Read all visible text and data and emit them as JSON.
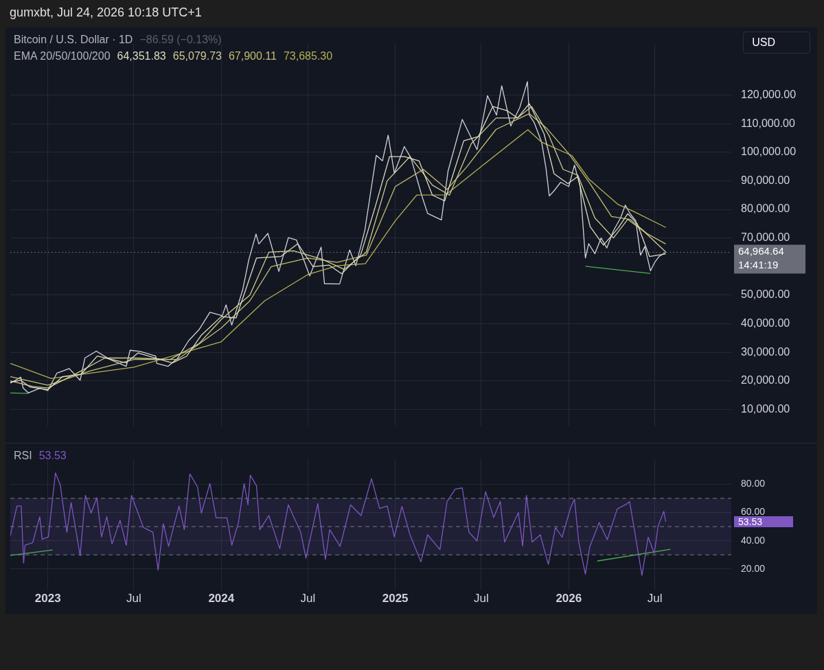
{
  "chart_data": [
    {
      "type": "line",
      "title": "Bitcoin / U.S. Dollar · 1D",
      "subtitle": "−86.59 (−0.13%)",
      "legend_title": "EMA 20/50/100/200",
      "legend": "top left",
      "grid": true,
      "tick_labels": "y",
      "xlim": [
        "2022-10-14",
        "2026-12-09"
      ],
      "xticks": [
        {
          "value": "2023-01-01",
          "label": null
        },
        {
          "value": "2023-07-01",
          "label": null
        },
        {
          "value": "2024-01-01",
          "label": null
        },
        {
          "value": "2024-07-01",
          "label": null
        },
        {
          "value": "2025-01-01",
          "label": null
        },
        {
          "value": "2025-07-01",
          "label": null
        },
        {
          "value": "2026-01-01",
          "label": null
        },
        {
          "value": "2026-07-01",
          "label": null
        }
      ],
      "ylim": [
        4000,
        138000
      ],
      "yticks": [
        {
          "value": 10000,
          "label": "10,000.00"
        },
        {
          "value": 20000,
          "label": "20,000.00"
        },
        {
          "value": 30000,
          "label": "30,000.00"
        },
        {
          "value": 40000,
          "label": "40,000.00"
        },
        {
          "value": 50000,
          "label": "50,000.00"
        },
        {
          "value": 70000,
          "label": "70,000.00"
        },
        {
          "value": 80000,
          "label": "80,000.00"
        },
        {
          "value": 90000,
          "label": "90,000.00"
        },
        {
          "value": 100000,
          "label": "100,000.00"
        },
        {
          "value": 110000,
          "label": "110,000.00"
        },
        {
          "value": 120000,
          "label": "120,000.00"
        }
      ],
      "ref_lines": [
        {
          "axis": "y",
          "value": 64964.64,
          "color": "#6a6d78",
          "line_style": "dotted"
        }
      ],
      "annotations": [
        "gumxbt, Jul 24, 2026 10:18 UTC+1",
        "USD",
        "14:41:19",
        "64,964.64"
      ],
      "series": [
        {
          "color": "#deddc0",
          "x": [
            "2022-10-14",
            "2022-11-05",
            "2022-11-25",
            "2023-01-01",
            "2023-02-01",
            "2023-03-12",
            "2023-04-15",
            "2023-06-15",
            "2023-07-10",
            "2023-08-25",
            "2023-09-20",
            "2023-10-20",
            "2023-11-20",
            "2024-01-01",
            "2024-02-01",
            "2024-03-15",
            "2024-05-05",
            "2024-06-10",
            "2024-07-12",
            "2024-08-15",
            "2024-09-10",
            "2024-10-20",
            "2024-11-20",
            "2024-12-20",
            "2025-01-20",
            "2025-02-20",
            "2025-03-20",
            "2025-04-15",
            "2025-05-25",
            "2025-06-25",
            "2025-07-25",
            "2025-08-25",
            "2025-09-15",
            "2025-10-10",
            "2025-11-10",
            "2025-12-01",
            "2025-12-30",
            "2026-01-20",
            "2026-02-15",
            "2026-03-15",
            "2026-04-15",
            "2026-05-05",
            "2026-05-25",
            "2026-06-20",
            "2026-07-24"
          ],
          "values": [
            19500,
            20200,
            17800,
            16900,
            21500,
            22300,
            28700,
            26300,
            29800,
            27500,
            26300,
            28600,
            36000,
            42500,
            42000,
            63000,
            63500,
            68000,
            60000,
            60500,
            57500,
            64000,
            81000,
            98500,
            98500,
            97000,
            85000,
            83000,
            104000,
            105500,
            116000,
            114500,
            112000,
            117000,
            106500,
            92500,
            89000,
            91500,
            74000,
            67500,
            73500,
            78500,
            75000,
            63500,
            64400
          ],
          "name": "64,351.83"
        },
        {
          "color": "#d0cc92",
          "x": [
            "2022-10-14",
            "2022-12-01",
            "2023-01-01",
            "2023-03-01",
            "2023-05-01",
            "2023-07-01",
            "2023-09-15",
            "2023-11-15",
            "2024-01-01",
            "2024-03-01",
            "2024-04-10",
            "2024-06-01",
            "2024-08-01",
            "2024-09-15",
            "2024-11-01",
            "2024-12-15",
            "2025-02-01",
            "2025-03-20",
            "2025-04-25",
            "2025-06-10",
            "2025-08-01",
            "2025-09-15",
            "2025-10-15",
            "2025-11-20",
            "2025-12-20",
            "2026-01-20",
            "2026-02-25",
            "2026-04-05",
            "2026-05-05",
            "2026-06-10",
            "2026-07-24"
          ],
          "values": [
            20000,
            18000,
            17500,
            22500,
            28000,
            28000,
            27500,
            33000,
            41500,
            50000,
            65000,
            65500,
            62500,
            59000,
            65000,
            90000,
            98500,
            88500,
            85000,
            103000,
            112000,
            112000,
            116000,
            106000,
            94000,
            92000,
            77000,
            70000,
            76500,
            72000,
            65100
          ],
          "name": "65,079.73"
        },
        {
          "color": "#c4bf72",
          "x": [
            "2022-10-14",
            "2023-01-01",
            "2023-04-01",
            "2023-07-01",
            "2023-10-01",
            "2024-01-01",
            "2024-03-01",
            "2024-04-15",
            "2024-07-01",
            "2024-09-01",
            "2024-11-01",
            "2025-01-01",
            "2025-03-01",
            "2025-04-20",
            "2025-06-01",
            "2025-08-01",
            "2025-10-10",
            "2025-11-15",
            "2026-01-01",
            "2026-02-15",
            "2026-04-01",
            "2026-05-10",
            "2026-06-15",
            "2026-07-24"
          ],
          "values": [
            21500,
            18500,
            23500,
            27500,
            27500,
            38500,
            48000,
            60000,
            63000,
            61500,
            64000,
            88000,
            94000,
            87000,
            95000,
            108000,
            113500,
            108500,
            99500,
            89000,
            77500,
            76500,
            71500,
            67900
          ],
          "name": "67,900.11"
        },
        {
          "color": "#b5b052",
          "x": [
            "2022-10-14",
            "2023-01-08",
            "2023-07-01",
            "2024-01-01",
            "2024-04-01",
            "2024-07-01",
            "2024-09-01",
            "2024-10-30",
            "2025-01-01",
            "2025-02-15",
            "2025-04-17",
            "2025-07-01",
            "2025-10-07",
            "2025-11-05",
            "2026-01-08",
            "2026-02-13",
            "2026-04-15",
            "2026-05-17",
            "2026-07-24"
          ],
          "values": [
            26100,
            20800,
            24800,
            33700,
            48000,
            57200,
            60300,
            61000,
            76000,
            85000,
            85100,
            95000,
            107900,
            103500,
            98800,
            90500,
            81700,
            79300,
            73700
          ],
          "name": "73,685.30"
        },
        {
          "color": "#d1d4dc",
          "x": [
            "2022-10-14",
            "2022-11-05",
            "2022-11-10",
            "2022-11-21",
            "2022-12-15",
            "2023-01-01",
            "2023-01-20",
            "2023-02-15",
            "2023-03-10",
            "2023-03-20",
            "2023-04-13",
            "2023-05-10",
            "2023-06-15",
            "2023-06-23",
            "2023-07-14",
            "2023-08-16",
            "2023-08-18",
            "2023-09-11",
            "2023-10-01",
            "2023-10-24",
            "2023-11-15",
            "2023-12-08",
            "2024-01-03",
            "2024-01-11",
            "2024-01-23",
            "2024-02-15",
            "2024-02-28",
            "2024-03-14",
            "2024-03-20",
            "2024-04-08",
            "2024-05-01",
            "2024-05-21",
            "2024-06-07",
            "2024-07-05",
            "2024-07-29",
            "2024-08-05",
            "2024-09-06",
            "2024-09-27",
            "2024-10-10",
            "2024-10-29",
            "2024-11-12",
            "2024-11-22",
            "2024-12-05",
            "2024-12-17",
            "2024-12-30",
            "2025-01-20",
            "2025-02-03",
            "2025-02-26",
            "2025-03-10",
            "2025-04-08",
            "2025-04-22",
            "2025-05-22",
            "2025-06-22",
            "2025-07-14",
            "2025-08-02",
            "2025-08-13",
            "2025-09-01",
            "2025-09-20",
            "2025-10-06",
            "2025-10-10",
            "2025-10-20",
            "2025-11-05",
            "2025-11-14",
            "2025-11-21",
            "2025-12-01",
            "2025-12-15",
            "2026-01-01",
            "2026-01-13",
            "2026-01-25",
            "2026-02-05",
            "2026-02-12",
            "2026-02-25",
            "2026-03-10",
            "2026-03-22",
            "2026-04-05",
            "2026-04-20",
            "2026-04-30",
            "2026-05-10",
            "2026-05-22",
            "2026-06-01",
            "2026-06-10",
            "2026-06-22",
            "2026-07-01",
            "2026-07-10",
            "2026-07-24"
          ],
          "values": [
            19200,
            21300,
            17500,
            15800,
            17400,
            16600,
            22700,
            24300,
            20200,
            28000,
            30400,
            27600,
            25100,
            30700,
            30300,
            28700,
            26100,
            25100,
            27900,
            34000,
            37900,
            44000,
            42800,
            46600,
            39500,
            51900,
            62500,
            71400,
            67900,
            71600,
            58300,
            70100,
            69300,
            56700,
            66800,
            54000,
            53900,
            65800,
            60300,
            72700,
            88000,
            98900,
            97000,
            106000,
            92700,
            102000,
            98000,
            84700,
            78600,
            76300,
            93400,
            111500,
            100900,
            119800,
            113000,
            123300,
            109200,
            115700,
            124700,
            113000,
            110500,
            103500,
            94500,
            84700,
            86500,
            89500,
            88000,
            95500,
            88000,
            63000,
            68000,
            64500,
            70000,
            66500,
            72500,
            77000,
            81500,
            78500,
            76000,
            64000,
            67000,
            58500,
            61500,
            63500,
            65000
          ]
        },
        {
          "type": "line",
          "color": "#4caf50",
          "x": [
            "2022-10-14",
            "2022-11-21"
          ],
          "values": [
            15800,
            15600
          ]
        },
        {
          "type": "line",
          "color": "#4caf50",
          "x": [
            "2026-02-05",
            "2026-06-22"
          ],
          "values": [
            60100,
            57600
          ]
        }
      ]
    },
    {
      "type": "line",
      "title": "RSI",
      "legend": "top left",
      "grid": true,
      "xlim": [
        "2022-10-14",
        "2026-12-09"
      ],
      "xticks": [
        {
          "value": "2023-01-01",
          "label": "2023"
        },
        {
          "value": "2023-07-01",
          "label": "Jul"
        },
        {
          "value": "2024-01-01",
          "label": "2024"
        },
        {
          "value": "2024-07-01",
          "label": "Jul"
        },
        {
          "value": "2025-01-01",
          "label": "2025"
        },
        {
          "value": "2025-07-01",
          "label": "Jul"
        },
        {
          "value": "2026-01-01",
          "label": "2026"
        },
        {
          "value": "2026-07-01",
          "label": "Jul"
        }
      ],
      "ylim": [
        5,
        98
      ],
      "yticks": [
        {
          "value": 20,
          "label": "20.00"
        },
        {
          "value": 40,
          "label": "40.00"
        },
        {
          "value": 60,
          "label": "60.00"
        },
        {
          "value": 80,
          "label": "80.00"
        }
      ],
      "bands": [
        {
          "axis": "y",
          "from": 30,
          "to": 70,
          "color": "#7e57c2"
        }
      ],
      "ref_lines": [
        {
          "axis": "y",
          "value": 70,
          "color": "#787b86",
          "line_style": "dashed"
        },
        {
          "axis": "y",
          "value": 50,
          "color": "#787b86",
          "line_style": "dashed"
        },
        {
          "axis": "y",
          "value": 30,
          "color": "#787b86",
          "line_style": "dashed"
        }
      ],
      "annotations": [
        "53.53"
      ],
      "series": [
        {
          "name": "53.53",
          "color": "#7e57c2",
          "x": [
            "2022-10-14",
            "2022-10-28",
            "2022-11-06",
            "2022-11-11",
            "2022-11-14",
            "2022-11-30",
            "2022-12-15",
            "2022-12-20",
            "2023-01-02",
            "2023-01-17",
            "2023-01-27",
            "2023-02-10",
            "2023-02-19",
            "2023-03-10",
            "2023-03-21",
            "2023-04-02",
            "2023-04-14",
            "2023-04-24",
            "2023-05-05",
            "2023-05-16",
            "2023-06-02",
            "2023-06-15",
            "2023-06-26",
            "2023-07-08",
            "2023-07-21",
            "2023-08-10",
            "2023-08-21",
            "2023-09-01",
            "2023-09-12",
            "2023-10-04",
            "2023-10-15",
            "2023-10-27",
            "2023-11-12",
            "2023-11-20",
            "2023-12-08",
            "2023-12-21",
            "2024-01-13",
            "2024-01-23",
            "2024-02-06",
            "2024-02-18",
            "2024-02-26",
            "2024-03-02",
            "2024-03-15",
            "2024-03-22",
            "2024-04-10",
            "2024-05-03",
            "2024-05-21",
            "2024-06-16",
            "2024-06-27",
            "2024-07-22",
            "2024-08-07",
            "2024-08-16",
            "2024-09-07",
            "2024-09-29",
            "2024-10-21",
            "2024-11-12",
            "2024-11-29",
            "2024-12-15",
            "2024-12-30",
            "2025-01-15",
            "2025-02-01",
            "2025-02-24",
            "2025-03-10",
            "2025-04-05",
            "2025-04-20",
            "2025-05-07",
            "2025-05-22",
            "2025-06-05",
            "2025-06-22",
            "2025-07-10",
            "2025-07-27",
            "2025-08-10",
            "2025-08-19",
            "2025-09-17",
            "2025-09-26",
            "2025-10-04",
            "2025-10-16",
            "2025-11-02",
            "2025-11-19",
            "2025-12-04",
            "2025-12-18",
            "2026-01-05",
            "2026-01-13",
            "2026-01-22",
            "2026-02-05",
            "2026-02-14",
            "2026-03-06",
            "2026-03-23",
            "2026-04-13",
            "2026-05-03",
            "2026-05-09",
            "2026-05-20",
            "2026-06-04",
            "2026-06-17",
            "2026-06-30",
            "2026-07-08",
            "2026-07-20",
            "2026-07-24"
          ],
          "values": [
            43.6,
            64.6,
            64.6,
            24.2,
            36.8,
            38.5,
            57,
            41,
            42.7,
            88,
            79.7,
            46,
            67,
            29.3,
            72.1,
            59.5,
            70.5,
            42.7,
            57,
            37.7,
            54.5,
            36.8,
            72.1,
            61.2,
            49.4,
            46,
            19.2,
            52,
            36,
            64.6,
            47.8,
            87.3,
            78,
            59.5,
            80.5,
            56.2,
            56.2,
            36.8,
            52.8,
            80.5,
            65.4,
            86.4,
            78.9,
            47.8,
            57.8,
            34.3,
            65.4,
            46,
            27.6,
            66.3,
            26.8,
            47.8,
            36,
            65.4,
            57.8,
            83.9,
            62.9,
            64.6,
            42.7,
            64.3,
            44.2,
            25,
            44.2,
            33.7,
            67.8,
            76.5,
            77.4,
            46,
            39.8,
            74.8,
            56.4,
            67.8,
            39,
            59.9,
            36.3,
            72.1,
            39,
            44.2,
            23.2,
            49.4,
            42.5,
            63.4,
            69.5,
            39,
            16.3,
            35.5,
            52.9,
            40.7,
            62.5,
            66,
            67.8,
            46,
            15.4,
            42.5,
            31.1,
            50.3,
            60.8,
            53.5
          ]
        },
        {
          "type": "line",
          "color": "#4caf50",
          "x": [
            "2022-10-14",
            "2023-01-11"
          ],
          "values": [
            29.5,
            33.4
          ]
        },
        {
          "type": "line",
          "color": "#4caf50",
          "x": [
            "2026-03-02",
            "2026-08-03"
          ],
          "values": [
            25.6,
            33.9
          ]
        }
      ]
    }
  ]
}
